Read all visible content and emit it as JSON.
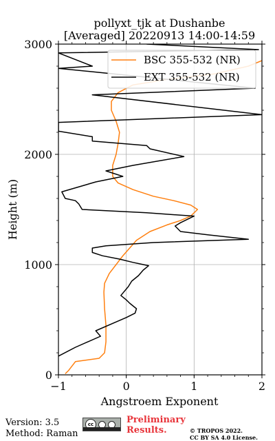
{
  "chart_data": {
    "type": "line",
    "title_line1": "pollyxt_tjk at Dushanbe",
    "title_line2": "[Averaged] 20220913 14:00-14:59",
    "xlabel": "Angstroem Exponent",
    "ylabel": "Height (m)",
    "xlim": [
      -1,
      2
    ],
    "ylim": [
      0,
      3000
    ],
    "xticks": [
      -1,
      0,
      1,
      2
    ],
    "xtick_labels": [
      "−1",
      "0",
      "1",
      "2"
    ],
    "yticks": [
      0,
      1000,
      2000,
      3000
    ],
    "ytick_labels": [
      "0",
      "1000",
      "2000",
      "3000"
    ],
    "grid": true,
    "legend_position": "top-right",
    "series": [
      {
        "name": "BSC 355-532 (NR)",
        "color": "#ff7f0e",
        "points": [
          [
            -0.9,
            10
          ],
          [
            -0.85,
            40
          ],
          [
            -0.75,
            120
          ],
          [
            -0.4,
            150
          ],
          [
            -0.32,
            200
          ],
          [
            -0.3,
            300
          ],
          [
            -0.3,
            450
          ],
          [
            -0.32,
            600
          ],
          [
            -0.33,
            750
          ],
          [
            -0.32,
            830
          ],
          [
            -0.25,
            920
          ],
          [
            -0.15,
            1000
          ],
          [
            -0.05,
            1080
          ],
          [
            0.05,
            1150
          ],
          [
            0.15,
            1220
          ],
          [
            0.35,
            1300
          ],
          [
            0.6,
            1360
          ],
          [
            0.8,
            1400
          ],
          [
            0.95,
            1440
          ],
          [
            1.05,
            1500
          ],
          [
            0.95,
            1540
          ],
          [
            0.7,
            1580
          ],
          [
            0.4,
            1620
          ],
          [
            0.1,
            1680
          ],
          [
            -0.12,
            1740
          ],
          [
            -0.2,
            1800
          ],
          [
            -0.2,
            1900
          ],
          [
            -0.15,
            2000
          ],
          [
            -0.12,
            2100
          ],
          [
            -0.1,
            2200
          ],
          [
            -0.15,
            2300
          ],
          [
            -0.22,
            2400
          ],
          [
            -0.22,
            2480
          ],
          [
            -0.12,
            2560
          ],
          [
            0.1,
            2630
          ],
          [
            0.6,
            2680
          ],
          [
            1.3,
            2730
          ],
          [
            1.8,
            2800
          ],
          [
            2.0,
            2850
          ]
        ]
      },
      {
        "name": "EXT 355-532 (NR)",
        "color": "#000000",
        "points": [
          [
            -1.0,
            170
          ],
          [
            -0.75,
            250
          ],
          [
            -0.38,
            350
          ],
          [
            -0.45,
            400
          ],
          [
            -0.15,
            480
          ],
          [
            0.0,
            520
          ],
          [
            0.13,
            560
          ],
          [
            0.15,
            600
          ],
          [
            0.05,
            650
          ],
          [
            0.0,
            680
          ],
          [
            -0.08,
            720
          ],
          [
            0.03,
            800
          ],
          [
            0.08,
            850
          ],
          [
            0.18,
            900
          ],
          [
            0.25,
            950
          ],
          [
            0.33,
            990
          ],
          [
            0.1,
            1020
          ],
          [
            -0.1,
            1050
          ],
          [
            -0.35,
            1080
          ],
          [
            -0.5,
            1110
          ],
          [
            -0.5,
            1150
          ],
          [
            -0.3,
            1170
          ],
          [
            0.4,
            1200
          ],
          [
            1.8,
            1230
          ],
          [
            1.2,
            1270
          ],
          [
            0.8,
            1300
          ],
          [
            0.72,
            1350
          ],
          [
            0.8,
            1380
          ],
          [
            1.0,
            1440
          ],
          [
            0.3,
            1470
          ],
          [
            -0.65,
            1500
          ],
          [
            -0.7,
            1550
          ],
          [
            -0.75,
            1580
          ],
          [
            -0.9,
            1600
          ],
          [
            -0.95,
            1660
          ],
          [
            -0.45,
            1750
          ],
          [
            -0.05,
            1800
          ],
          [
            -0.3,
            1850
          ],
          [
            0.1,
            1900
          ],
          [
            0.85,
            1980
          ],
          [
            0.35,
            2050
          ],
          [
            0.3,
            2080
          ],
          [
            -0.5,
            2120
          ],
          [
            -0.5,
            2160
          ],
          [
            -1.0,
            2210
          ],
          [
            -1.0,
            2290
          ],
          [
            2.0,
            2360
          ],
          [
            -0.5,
            2540
          ],
          [
            1.9,
            2600
          ],
          [
            -1.0,
            2780
          ],
          [
            -0.5,
            2800
          ],
          [
            -1.0,
            2920
          ],
          [
            1.95,
            2950
          ],
          [
            0.3,
            3000
          ]
        ]
      }
    ]
  },
  "footer": {
    "version": "Version: 3.5",
    "method": "Method: Raman",
    "preliminary": "Preliminary Results.",
    "copyright_line1": "© TROPOS 2022.",
    "copyright_line2": "CC BY SA 4.0 License.",
    "license_badge_text": "cc"
  }
}
